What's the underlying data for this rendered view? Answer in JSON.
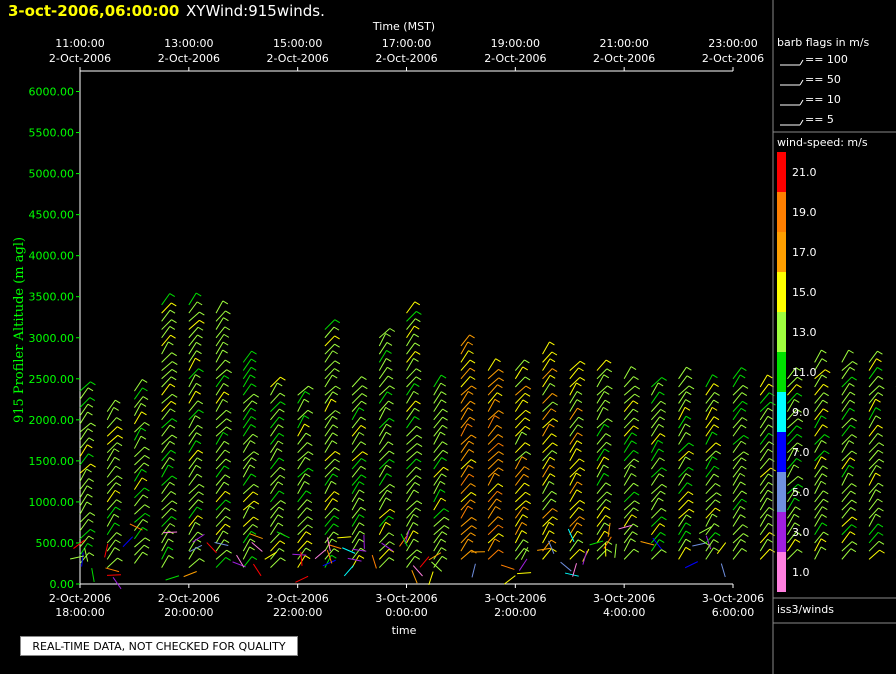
{
  "header": {
    "date": "3-oct-2006,06:00:00",
    "title": "XYWind:915winds."
  },
  "quality_notice": "REAL-TIME DATA, NOT CHECKED FOR QUALITY",
  "legend": {
    "barb_title": "barb flags in m/s",
    "barb_flags": [
      "== 100",
      "== 50",
      "== 10",
      "== 5"
    ],
    "speed_title": "wind-speed: m/s",
    "speed_scale": [
      {
        "label": "21.0",
        "color": "#ff0000"
      },
      {
        "label": "19.0",
        "color": "#ff7f00"
      },
      {
        "label": "17.0",
        "color": "#ff9f00"
      },
      {
        "label": "15.0",
        "color": "#ffff00"
      },
      {
        "label": "13.0",
        "color": "#9fff3f"
      },
      {
        "label": "11.0",
        "color": "#00df00"
      },
      {
        "label": "9.0",
        "color": "#00ffff"
      },
      {
        "label": "7.0",
        "color": "#0000ff"
      },
      {
        "label": "5.0",
        "color": "#6f8fdf"
      },
      {
        "label": "3.0",
        "color": "#9f1fdf"
      },
      {
        "label": "1.0",
        "color": "#ff7fdf"
      }
    ],
    "source": "iss3/winds"
  },
  "chart_data": {
    "type": "scatter",
    "ylabel": "915 Profiler Altitude (m agl)",
    "xlabel": "time",
    "top_xlabel": "Time (MST)",
    "ylim": [
      0,
      6250
    ],
    "y_ticks": [
      "0.00",
      "500.00",
      "1000.00",
      "1500.00",
      "2000.00",
      "2500.00",
      "3000.00",
      "3500.00",
      "4000.00",
      "4500.00",
      "5000.00",
      "5500.00",
      "6000.00"
    ],
    "x_ticks_bottom": [
      [
        "2-Oct-2006",
        "18:00:00"
      ],
      [
        "2-Oct-2006",
        "20:00:00"
      ],
      [
        "2-Oct-2006",
        "22:00:00"
      ],
      [
        "3-Oct-2006",
        "0:00:00"
      ],
      [
        "3-Oct-2006",
        "2:00:00"
      ],
      [
        "3-Oct-2006",
        "4:00:00"
      ],
      [
        "3-Oct-2006",
        "6:00:00"
      ]
    ],
    "x_ticks_top": [
      [
        "11:00:00",
        "2-Oct-2006"
      ],
      [
        "13:00:00",
        "2-Oct-2006"
      ],
      [
        "15:00:00",
        "2-Oct-2006"
      ],
      [
        "17:00:00",
        "2-Oct-2006"
      ],
      [
        "19:00:00",
        "2-Oct-2006"
      ],
      [
        "21:00:00",
        "2-Oct-2006"
      ],
      [
        "23:00:00",
        "2-Oct-2006"
      ]
    ],
    "profiles": [
      {
        "t": 0.0,
        "top": 2350,
        "low": 250,
        "step": 100,
        "speed": 13
      },
      {
        "t": 0.5,
        "top": 2150,
        "low": 200,
        "step": 100,
        "speed": 13
      },
      {
        "t": 1.0,
        "top": 2350,
        "low": 250,
        "step": 100,
        "speed": 13
      },
      {
        "t": 1.5,
        "top": 3450,
        "low": 200,
        "step": 100,
        "speed": 13
      },
      {
        "t": 2.0,
        "top": 3400,
        "low": 200,
        "step": 100,
        "speed": 13
      },
      {
        "t": 2.5,
        "top": 3350,
        "low": 200,
        "step": 100,
        "speed": 13
      },
      {
        "t": 3.0,
        "top": 2750,
        "low": 200,
        "step": 100,
        "speed": 13
      },
      {
        "t": 3.5,
        "top": 2450,
        "low": 200,
        "step": 100,
        "speed": 13
      },
      {
        "t": 4.0,
        "top": 2350,
        "low": 200,
        "step": 100,
        "speed": 13
      },
      {
        "t": 4.5,
        "top": 3150,
        "low": 200,
        "step": 100,
        "speed": 13
      },
      {
        "t": 5.0,
        "top": 2450,
        "low": 200,
        "step": 100,
        "speed": 13
      },
      {
        "t": 5.5,
        "top": 3050,
        "low": 200,
        "step": 100,
        "speed": 13
      },
      {
        "t": 6.0,
        "top": 3300,
        "low": 200,
        "step": 100,
        "speed": 13
      },
      {
        "t": 6.5,
        "top": 2450,
        "low": 200,
        "step": 100,
        "speed": 13
      },
      {
        "t": 7.0,
        "top": 2950,
        "low": 300,
        "step": 100,
        "speed": 17
      },
      {
        "t": 7.5,
        "top": 2650,
        "low": 300,
        "step": 100,
        "speed": 17
      },
      {
        "t": 8.0,
        "top": 2650,
        "low": 300,
        "step": 100,
        "speed": 15
      },
      {
        "t": 8.5,
        "top": 2850,
        "low": 300,
        "step": 100,
        "speed": 15
      },
      {
        "t": 9.0,
        "top": 2650,
        "low": 300,
        "step": 100,
        "speed": 15
      },
      {
        "t": 9.5,
        "top": 2650,
        "low": 300,
        "step": 100,
        "speed": 13
      },
      {
        "t": 10.0,
        "top": 2550,
        "low": 300,
        "step": 100,
        "speed": 13
      },
      {
        "t": 10.5,
        "top": 2450,
        "low": 300,
        "step": 100,
        "speed": 13
      },
      {
        "t": 11.0,
        "top": 2550,
        "low": 300,
        "step": 100,
        "speed": 13
      },
      {
        "t": 11.5,
        "top": 2450,
        "low": 300,
        "step": 100,
        "speed": 13
      },
      {
        "t": 12.0,
        "top": 2550,
        "low": 300,
        "step": 100,
        "speed": 13
      },
      {
        "t": 12.5,
        "top": 2450,
        "low": 300,
        "step": 100,
        "speed": 13
      },
      {
        "t": 13.0,
        "top": 2550,
        "low": 300,
        "step": 100,
        "speed": 13
      },
      {
        "t": 13.5,
        "top": 2750,
        "low": 300,
        "step": 100,
        "speed": 13
      },
      {
        "t": 14.0,
        "top": 2750,
        "low": 300,
        "step": 100,
        "speed": 13
      },
      {
        "t": 14.5,
        "top": 2750,
        "low": 300,
        "step": 100,
        "speed": 13
      },
      {
        "t": 15.0,
        "top": 2650,
        "low": 300,
        "step": 100,
        "speed": 13
      },
      {
        "t": 15.5,
        "top": 2650,
        "low": 300,
        "step": 100,
        "speed": 13
      }
    ]
  }
}
